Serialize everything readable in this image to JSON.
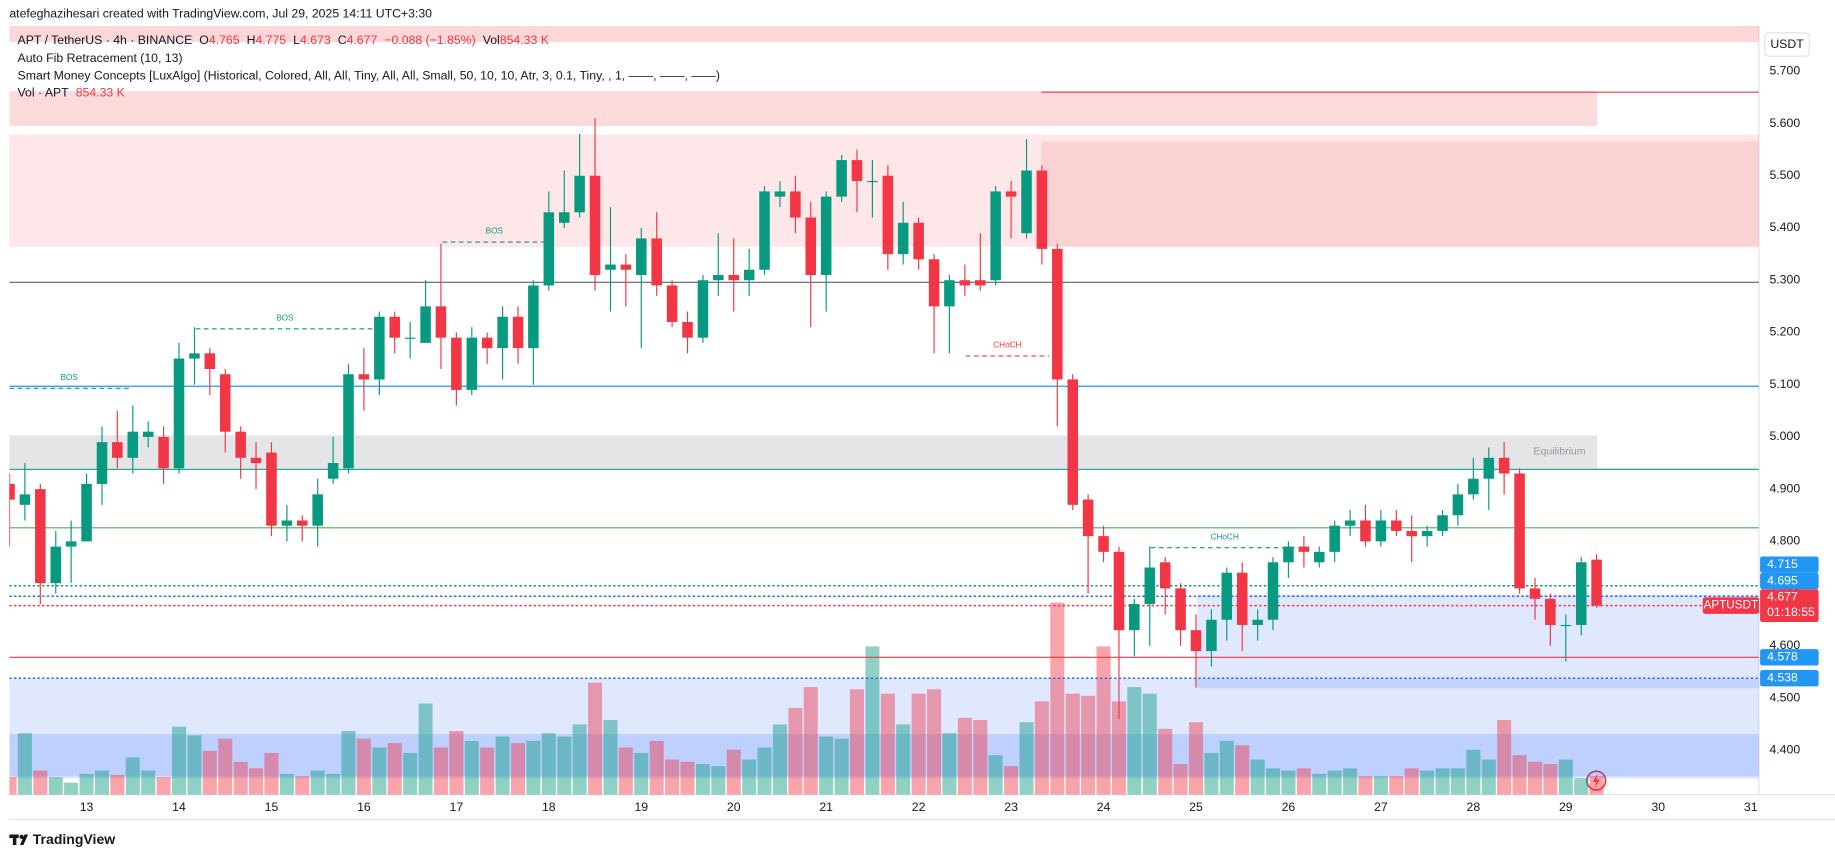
{
  "watermark": "atefeghazihesari created with TradingView.com, Jul 29, 2025 14:11 UTC+3:30",
  "footer": "TradingView",
  "chart_data": {
    "type": "candlestick",
    "currency": "USDT",
    "legend": {
      "symbol": "APT / TetherUS · 4h · BINANCE",
      "fields": [
        {
          "key": "O",
          "value": 4.765
        },
        {
          "key": "H",
          "value": 4.775
        },
        {
          "key": "L",
          "value": 4.673
        },
        {
          "key": "C",
          "value": 4.677
        }
      ],
      "change": "−0.088 (−1.85%)",
      "volume_key": "Vol",
      "volume": "854.33 K",
      "color": "#f23645"
    },
    "indicators": [
      "Auto Fib Retracement (10, 13)",
      "Smart Money Concepts [LuxAlgo] (Historical, Colored, All, All, Tiny, All, All, Small, 50, 10, 10, Atr, 3, 0.1, Tiny, , 1, ——, ——, ——)"
    ],
    "volume_legend": {
      "name": "Vol · APT",
      "value": "854.33 K"
    },
    "up_color": "#089981",
    "down_color": "#f23645",
    "grid": false,
    "xlim": [
      12.165,
      31.089
    ],
    "xticks": [
      13,
      14,
      15,
      16,
      17,
      18,
      19,
      20,
      21,
      22,
      23,
      24,
      25,
      26,
      27,
      28,
      29,
      30,
      31
    ],
    "ylim": [
      4.315,
      5.787
    ],
    "yticks": [
      {
        "value": 4.4,
        "label": "4.400"
      },
      {
        "value": 4.5,
        "label": "4.500"
      },
      {
        "value": 4.6,
        "label": "4.600"
      },
      {
        "value": 4.7,
        "label": "4.700"
      },
      {
        "value": 4.8,
        "label": "4.800"
      },
      {
        "value": 4.9,
        "label": "4.900"
      },
      {
        "value": 5.0,
        "label": "5.000"
      },
      {
        "value": 5.1,
        "label": "5.100"
      },
      {
        "value": 5.2,
        "label": "5.200"
      },
      {
        "value": 5.3,
        "label": "5.300"
      },
      {
        "value": 5.4,
        "label": "5.400"
      },
      {
        "value": 5.5,
        "label": "5.500"
      },
      {
        "value": 5.6,
        "label": "5.600"
      },
      {
        "value": 5.7,
        "label": "5.700"
      }
    ],
    "volume_lim": [
      0,
      35000
    ],
    "ohlc": {
      "x": [
        12.167,
        12.333,
        12.5,
        12.667,
        12.833,
        13,
        13.167,
        13.333,
        13.5,
        13.667,
        13.833,
        14,
        14.167,
        14.333,
        14.5,
        14.667,
        14.833,
        15,
        15.167,
        15.333,
        15.5,
        15.667,
        15.833,
        16,
        16.167,
        16.333,
        16.5,
        16.667,
        16.833,
        17,
        17.167,
        17.333,
        17.5,
        17.667,
        17.833,
        18,
        18.167,
        18.333,
        18.5,
        18.667,
        18.833,
        19,
        19.167,
        19.333,
        19.5,
        19.667,
        19.833,
        20,
        20.167,
        20.333,
        20.5,
        20.667,
        20.833,
        21,
        21.167,
        21.333,
        21.5,
        21.667,
        21.833,
        22,
        22.167,
        22.333,
        22.5,
        22.667,
        22.833,
        23,
        23.167,
        23.333,
        23.5,
        23.667,
        23.833,
        24,
        24.167,
        24.333,
        24.5,
        24.667,
        24.833,
        25,
        25.167,
        25.333,
        25.5,
        25.667,
        25.833,
        26,
        26.167,
        26.333,
        26.5,
        26.667,
        26.833,
        27,
        27.167,
        27.333,
        27.5,
        27.667,
        27.833,
        28,
        28.167,
        28.333,
        28.5,
        28.667,
        28.833,
        29,
        29.167,
        29.333
      ],
      "open": [
        4.91,
        4.87,
        4.9,
        4.72,
        4.79,
        4.8,
        4.91,
        4.99,
        4.96,
        5.0,
        5.0,
        4.94,
        5.15,
        5.16,
        5.12,
        5.01,
        4.96,
        4.97,
        4.83,
        4.84,
        4.83,
        4.92,
        4.94,
        5.12,
        5.11,
        5.23,
        5.19,
        5.18,
        5.25,
        5.19,
        5.09,
        5.19,
        5.17,
        5.23,
        5.17,
        5.29,
        5.41,
        5.43,
        5.5,
        5.32,
        5.33,
        5.31,
        5.38,
        5.29,
        5.22,
        5.19,
        5.3,
        5.31,
        5.3,
        5.32,
        5.46,
        5.47,
        5.42,
        5.31,
        5.46,
        5.53,
        5.49,
        5.5,
        5.35,
        5.41,
        5.34,
        5.25,
        5.3,
        5.3,
        5.3,
        5.47,
        5.39,
        5.51,
        5.36,
        5.11,
        4.88,
        4.81,
        4.78,
        4.63,
        4.68,
        4.76,
        4.71,
        4.63,
        4.59,
        4.65,
        4.74,
        4.64,
        4.65,
        4.76,
        4.79,
        4.76,
        4.78,
        4.83,
        4.84,
        4.8,
        4.84,
        4.82,
        4.81,
        4.82,
        4.85,
        4.89,
        4.92,
        4.96,
        4.93,
        4.71,
        4.69,
        4.64,
        4.64,
        4.765
      ],
      "high": [
        4.93,
        4.95,
        4.91,
        4.82,
        4.84,
        4.93,
        5.02,
        5.05,
        5.06,
        5.03,
        5.02,
        5.18,
        5.21,
        5.17,
        5.13,
        5.02,
        4.99,
        4.99,
        4.87,
        4.85,
        4.92,
        5.0,
        5.14,
        5.17,
        5.24,
        5.24,
        5.22,
        5.3,
        5.37,
        5.2,
        5.21,
        5.2,
        5.25,
        5.25,
        5.3,
        5.47,
        5.51,
        5.58,
        5.61,
        5.44,
        5.35,
        5.4,
        5.43,
        5.3,
        5.24,
        5.31,
        5.39,
        5.38,
        5.36,
        5.48,
        5.49,
        5.5,
        5.45,
        5.47,
        5.54,
        5.55,
        5.53,
        5.52,
        5.45,
        5.42,
        5.35,
        5.31,
        5.33,
        5.39,
        5.48,
        5.49,
        5.57,
        5.52,
        5.37,
        5.12,
        4.89,
        4.83,
        4.79,
        4.69,
        4.79,
        4.77,
        4.72,
        4.66,
        4.67,
        4.75,
        4.76,
        4.67,
        4.77,
        4.8,
        4.81,
        4.79,
        4.84,
        4.86,
        4.87,
        4.86,
        4.86,
        4.85,
        4.83,
        4.86,
        4.91,
        4.96,
        4.98,
        4.99,
        4.94,
        4.73,
        4.7,
        4.66,
        4.77,
        4.775
      ],
      "low": [
        4.79,
        4.84,
        4.68,
        4.7,
        4.72,
        4.8,
        4.87,
        4.94,
        4.93,
        4.98,
        4.91,
        4.93,
        5.1,
        5.08,
        4.97,
        4.92,
        4.9,
        4.81,
        4.8,
        4.8,
        4.79,
        4.91,
        4.93,
        5.05,
        5.08,
        5.16,
        5.15,
        5.18,
        5.13,
        5.06,
        5.08,
        5.14,
        5.11,
        5.14,
        5.1,
        5.28,
        5.4,
        5.42,
        5.28,
        5.24,
        5.25,
        5.17,
        5.27,
        5.21,
        5.16,
        5.18,
        5.27,
        5.24,
        5.27,
        5.31,
        5.44,
        5.39,
        5.21,
        5.24,
        5.45,
        5.43,
        5.42,
        5.32,
        5.33,
        5.32,
        5.16,
        5.16,
        5.27,
        5.28,
        5.29,
        5.38,
        5.38,
        5.33,
        5.02,
        4.86,
        4.7,
        4.76,
        4.46,
        4.58,
        4.6,
        4.66,
        4.6,
        4.52,
        4.56,
        4.61,
        4.59,
        4.61,
        4.63,
        4.73,
        4.75,
        4.75,
        4.76,
        4.81,
        4.79,
        4.79,
        4.81,
        4.76,
        4.79,
        4.81,
        4.83,
        4.88,
        4.86,
        4.89,
        4.7,
        4.65,
        4.6,
        4.57,
        4.62,
        4.673
      ],
      "close": [
        4.88,
        4.89,
        4.72,
        4.79,
        4.8,
        4.91,
        4.99,
        4.96,
        5.01,
        5.01,
        4.94,
        5.15,
        5.16,
        5.13,
        5.01,
        4.96,
        4.95,
        4.83,
        4.84,
        4.83,
        4.89,
        4.95,
        5.12,
        5.11,
        5.23,
        5.19,
        5.19,
        5.25,
        5.19,
        5.09,
        5.19,
        5.17,
        5.23,
        5.17,
        5.29,
        5.43,
        5.43,
        5.5,
        5.31,
        5.33,
        5.32,
        5.38,
        5.29,
        5.22,
        5.19,
        5.3,
        5.31,
        5.3,
        5.32,
        5.47,
        5.47,
        5.42,
        5.31,
        5.46,
        5.53,
        5.49,
        5.49,
        5.35,
        5.41,
        5.34,
        5.25,
        5.3,
        5.29,
        5.29,
        5.47,
        5.46,
        5.51,
        5.36,
        5.11,
        4.87,
        4.81,
        4.78,
        4.63,
        4.68,
        4.75,
        4.71,
        4.63,
        4.59,
        4.65,
        4.74,
        4.64,
        4.65,
        4.76,
        4.79,
        4.78,
        4.78,
        4.83,
        4.84,
        4.8,
        4.84,
        4.82,
        4.81,
        4.82,
        4.85,
        4.89,
        4.92,
        4.96,
        4.93,
        4.71,
        4.69,
        4.64,
        4.64,
        4.76,
        4.677
      ],
      "volume": [
        800,
        2800,
        1100,
        800,
        550,
        950,
        1100,
        900,
        1700,
        1100,
        800,
        3100,
        2700,
        2000,
        2550,
        1500,
        1200,
        1900,
        950,
        850,
        1100,
        950,
        2900,
        2550,
        2150,
        2350,
        1900,
        4150,
        2150,
        2900,
        2450,
        2150,
        2650,
        2350,
        2450,
        2800,
        2650,
        3200,
        5100,
        3400,
        2150,
        1900,
        2450,
        1600,
        1500,
        1400,
        1300,
        2050,
        1600,
        2150,
        3200,
        3950,
        4900,
        2650,
        2550,
        4800,
        6750,
        4600,
        3200,
        4600,
        4800,
        2800,
        3500,
        3400,
        1800,
        1300,
        3300,
        4250,
        8750,
        4600,
        4500,
        6750,
        4250,
        4900,
        4600,
        3000,
        1400,
        3300,
        1900,
        2450,
        2250,
        1600,
        1200,
        1100,
        1200,
        950,
        1100,
        1200,
        850,
        850,
        850,
        1200,
        1100,
        1200,
        1200,
        2050,
        1600,
        3400,
        1800,
        1500,
        1400,
        1600,
        750,
        854.33
      ]
    },
    "zones": [
      {
        "from": 5.756,
        "to": 5.787,
        "x0": 12.165,
        "x1": 31.089,
        "color": "#f23645",
        "opacity": 0.2
      },
      {
        "from": 5.595,
        "to": 5.662,
        "x0": 12.165,
        "x1": 29.34,
        "color": "#f23645",
        "opacity": 0.18
      },
      {
        "from": 5.364,
        "to": 5.579,
        "x0": 12.165,
        "x1": 31.089,
        "color": "#f23645",
        "opacity": 0.12
      },
      {
        "from": 5.364,
        "to": 5.566,
        "x0": 23.33,
        "x1": 31.089,
        "color": "#f23645",
        "opacity": 0.12
      },
      {
        "from": 4.94,
        "to": 5.003,
        "x0": 12.165,
        "x1": 29.34,
        "color": "#9598a1",
        "opacity": 0.25,
        "label": "Equilibrium"
      },
      {
        "from": 4.346,
        "to": 4.537,
        "x0": 12.165,
        "x1": 31.089,
        "color": "#2962ff",
        "opacity": 0.15
      },
      {
        "from": 4.35,
        "to": 4.431,
        "x0": 12.165,
        "x1": 31.089,
        "color": "#2962ff",
        "opacity": 0.18
      },
      {
        "from": 4.519,
        "to": 4.698,
        "x0": 25.01,
        "x1": 31.089,
        "color": "#2962ff",
        "opacity": 0.15
      }
    ],
    "lines": [
      {
        "price": 5.66,
        "x0": 23.33,
        "color": "#f23645",
        "style": "solid"
      },
      {
        "price": 5.296,
        "color": "#5d606b",
        "style": "solid"
      },
      {
        "price": 5.097,
        "color": "#2196f3",
        "style": "solid"
      },
      {
        "price": 4.938,
        "color": "#089981",
        "style": "solid"
      },
      {
        "price": 4.826,
        "color": "#4caf50",
        "style": "solid"
      },
      {
        "price": 4.715,
        "color": "#089981",
        "style": "dotted"
      },
      {
        "price": 4.695,
        "color": "#2962ff",
        "style": "dotted"
      },
      {
        "price": 4.677,
        "color": "#f23645",
        "style": "dotted"
      },
      {
        "price": 4.578,
        "color": "#f23645",
        "style": "solid"
      },
      {
        "price": 4.538,
        "color": "#2962ff",
        "style": "dotted"
      }
    ],
    "structures": [
      {
        "label": "BOS",
        "price": 5.093,
        "x0": 12.165,
        "x1": 13.46,
        "color": "#089981"
      },
      {
        "label": "BOS",
        "price": 5.207,
        "x0": 14.18,
        "x1": 16.11,
        "color": "#089981"
      },
      {
        "label": "BOS",
        "price": 5.373,
        "x0": 16.85,
        "x1": 17.97,
        "color": "#089981"
      },
      {
        "label": "CHoCH",
        "price": 5.155,
        "x0": 22.51,
        "x1": 23.41,
        "color": "#f23645"
      },
      {
        "label": "CHoCH",
        "price": 4.788,
        "x0": 24.51,
        "x1": 26.11,
        "color": "#089981"
      }
    ],
    "price_labels": [
      {
        "value": 4.715,
        "color": "#2196f3"
      },
      {
        "value": 4.695,
        "color": "#2196f3"
      },
      {
        "value": 4.578,
        "color": "#2196f3"
      },
      {
        "value": 4.538,
        "color": "#2196f3"
      }
    ],
    "last_price": {
      "name": "APTUSDT",
      "value": 4.677,
      "countdown": "01:18:55",
      "color": "#f23645"
    }
  }
}
